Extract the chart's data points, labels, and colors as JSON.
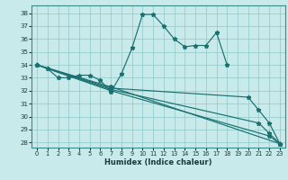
{
  "xlabel": "Humidex (Indice chaleur)",
  "bg_color": "#c8eaea",
  "grid_color": "#8ec8c8",
  "line_color": "#1a7070",
  "xlim": [
    -0.5,
    23.5
  ],
  "ylim": [
    27.6,
    38.6
  ],
  "yticks": [
    28,
    29,
    30,
    31,
    32,
    33,
    34,
    35,
    36,
    37,
    38
  ],
  "xticks": [
    0,
    1,
    2,
    3,
    4,
    5,
    6,
    7,
    8,
    9,
    10,
    11,
    12,
    13,
    14,
    15,
    16,
    17,
    18,
    19,
    20,
    21,
    22,
    23
  ],
  "line1_x": [
    0,
    1,
    2,
    3,
    4,
    5,
    6,
    7,
    8,
    9,
    10,
    11,
    12,
    13,
    14,
    15,
    16,
    17,
    18
  ],
  "line1_y": [
    34.0,
    33.7,
    33.0,
    33.0,
    33.2,
    33.2,
    32.8,
    31.9,
    33.3,
    35.3,
    37.9,
    37.9,
    37.0,
    36.0,
    35.4,
    35.5,
    35.5,
    36.5,
    34.0
  ],
  "line2_x": [
    0,
    7,
    20,
    21,
    22,
    23
  ],
  "line2_y": [
    34.0,
    32.2,
    31.5,
    30.5,
    29.5,
    27.9
  ],
  "line3_x": [
    0,
    7,
    21,
    22,
    23
  ],
  "line3_y": [
    34.0,
    32.1,
    29.5,
    28.7,
    27.9
  ],
  "line4_x": [
    1,
    7,
    22,
    23
  ],
  "line4_y": [
    33.7,
    32.0,
    28.5,
    27.9
  ],
  "line5_x": [
    0,
    7,
    23
  ],
  "line5_y": [
    34.0,
    32.3,
    27.9
  ]
}
